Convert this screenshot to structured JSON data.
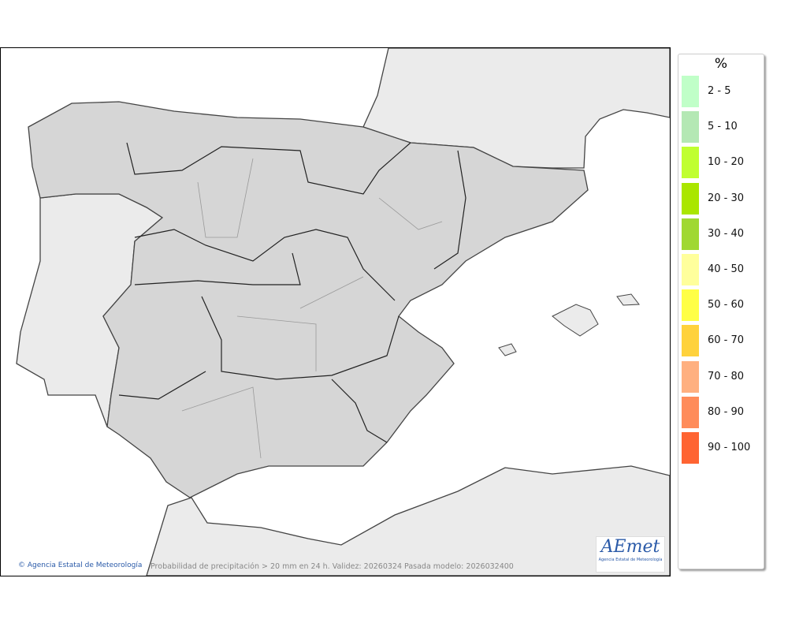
{
  "map": {
    "credit": "Agencia Estatal de Meteorología",
    "caption": "Probabilidad de precipitación > 20 mm en 24 h. Validez: 20260324 Pasada modelo: 2026032400",
    "logo_text": "AEmet",
    "logo_subtext": "Agencia Estatal de Meteorología"
  },
  "legend": {
    "title": "%",
    "items": [
      {
        "label": "2 - 5",
        "color": "#c0ffc8"
      },
      {
        "label": "5 - 10",
        "color": "#b4e8b4"
      },
      {
        "label": "10 - 20",
        "color": "#c0ff30"
      },
      {
        "label": "20 - 30",
        "color": "#aae600"
      },
      {
        "label": "30 - 40",
        "color": "#a0d832"
      },
      {
        "label": "40 - 50",
        "color": "#ffff9c"
      },
      {
        "label": "50 - 60",
        "color": "#ffff46"
      },
      {
        "label": "60 - 70",
        "color": "#ffd23c"
      },
      {
        "label": "70 - 80",
        "color": "#ffb080"
      },
      {
        "label": "80 - 90",
        "color": "#ff8c5a"
      },
      {
        "label": "90 - 100",
        "color": "#ff6432"
      }
    ]
  }
}
